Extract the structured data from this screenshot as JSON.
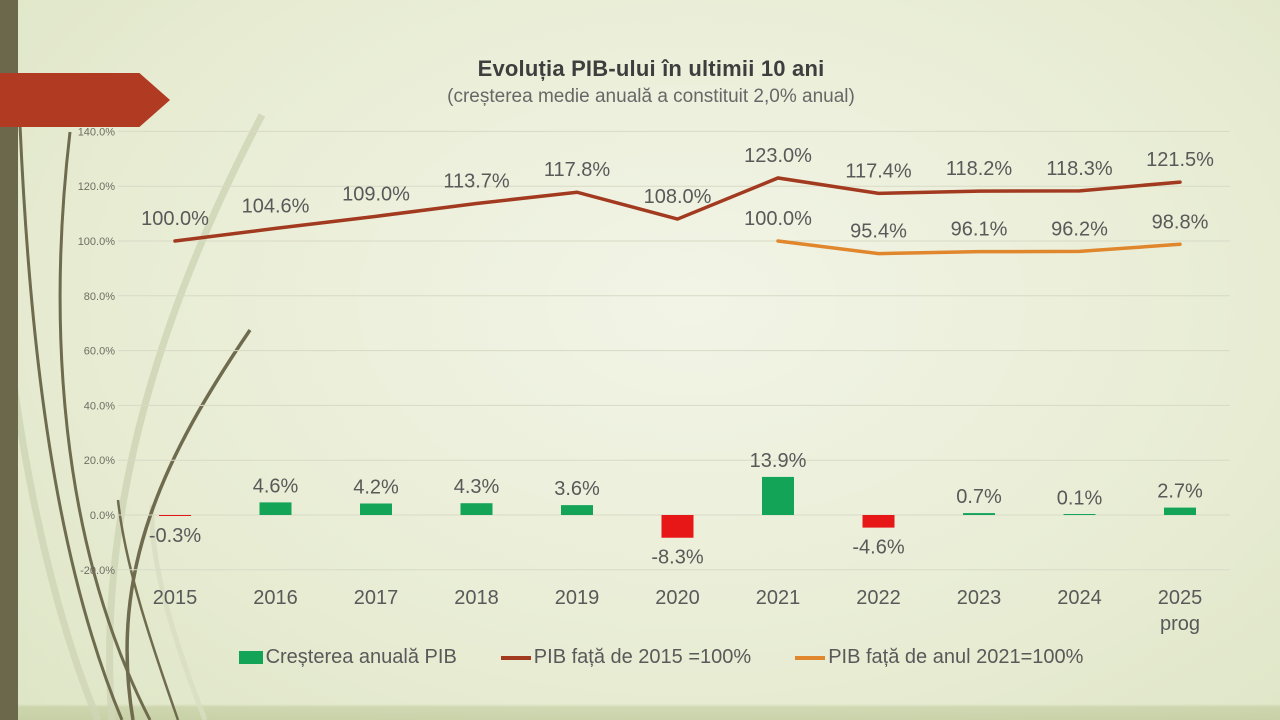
{
  "slide": {
    "title": "Evoluția PIB-ului în ultimii 10 ani",
    "subtitle": "(creșterea medie anuală a constituit 2,0% anual)"
  },
  "chart_data": {
    "type": "combo",
    "title": "Evoluția PIB-ului în ultimii 10 ani",
    "subtitle": "(creșterea medie anuală a constituit 2,0% anual)",
    "categories": [
      "2015",
      "2016",
      "2017",
      "2018",
      "2019",
      "2020",
      "2021",
      "2022",
      "2023",
      "2024",
      "2025"
    ],
    "last_category_note": "prog",
    "y_axis": {
      "min": -20,
      "max": 140,
      "step": 20,
      "grid": true,
      "tick_labels": [
        "140.0%",
        "120.0%",
        "100.0%",
        "80.0%",
        "60.0%",
        "40.0%",
        "20.0%",
        "0.0%",
        "-20.0%"
      ]
    },
    "legend_position": "bottom",
    "series": [
      {
        "name": "Creșterea anuală PIB",
        "type": "bar",
        "color_positive": "#13a457",
        "color_negative": "#e81717",
        "values": [
          -0.3,
          4.6,
          4.2,
          4.3,
          3.6,
          -8.3,
          13.9,
          -4.6,
          0.7,
          0.1,
          2.7
        ],
        "labels": [
          "-0.3%",
          "4.6%",
          "4.2%",
          "4.3%",
          "3.6%",
          "-8.3%",
          "13.9%",
          "-4.6%",
          "0.7%",
          "0.1%",
          "2.7%"
        ]
      },
      {
        "name": "PIB față de 2015 =100%",
        "type": "line",
        "color": "#a23a20",
        "values": [
          100.0,
          104.6,
          109.0,
          113.7,
          117.8,
          108.0,
          123.0,
          117.4,
          118.2,
          118.3,
          121.5
        ],
        "labels": [
          "100.0%",
          "104.6%",
          "109.0%",
          "113.7%",
          "117.8%",
          "108.0%",
          "123.0%",
          "117.4%",
          "118.2%",
          "118.3%",
          "121.5%"
        ]
      },
      {
        "name": "PIB față de anul 2021=100%",
        "type": "line",
        "color": "#e0862c",
        "values": [
          null,
          null,
          null,
          null,
          null,
          null,
          100.0,
          95.4,
          96.1,
          96.2,
          98.8
        ],
        "labels": [
          null,
          null,
          null,
          null,
          null,
          null,
          "100.0%",
          "95.4%",
          "96.1%",
          "96.2%",
          "98.8%"
        ]
      }
    ]
  },
  "decor": {
    "arrow_color": "#b13a23",
    "sidebar_color": "#6b684c",
    "wisp_dark": "#6f6b4e",
    "wisp_light": "#cfd5b6"
  }
}
